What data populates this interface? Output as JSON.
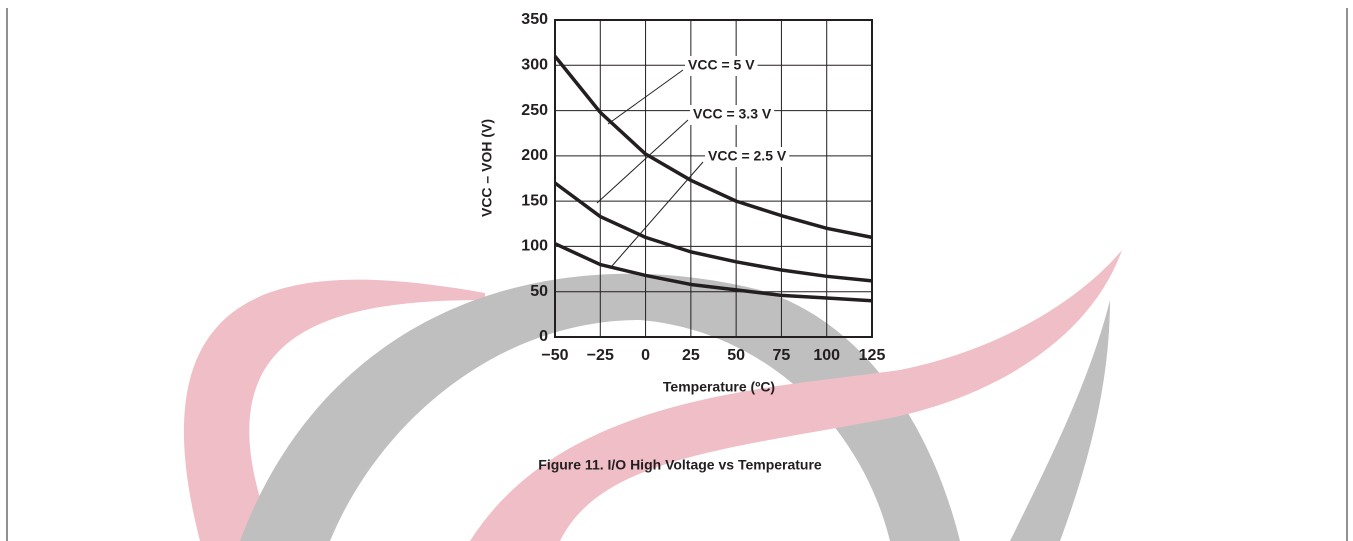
{
  "chart_data": {
    "type": "line",
    "caption": "Figure 11. I/O High Voltage vs Temperature",
    "xlabel": "Temperature (ºC)",
    "ylabel": "VCC – VOH (V)",
    "x": [
      -50,
      -25,
      0,
      25,
      50,
      75,
      100,
      125
    ],
    "series": [
      {
        "name": "VCC = 5 V",
        "color": "#231f20",
        "values": [
          310,
          248,
          202,
          173,
          150,
          134,
          120,
          110
        ]
      },
      {
        "name": "VCC = 3.3 V",
        "color": "#231f20",
        "values": [
          170,
          133,
          110,
          94,
          83,
          74,
          67,
          62
        ]
      },
      {
        "name": "VCC = 2.5 V",
        "color": "#231f20",
        "values": [
          103,
          80,
          68,
          58,
          52,
          46,
          43,
          40
        ]
      }
    ],
    "xlim": [
      -50,
      125
    ],
    "xticks": [
      {
        "value": -50,
        "label": "−50"
      },
      {
        "value": -25,
        "label": "−25"
      },
      0,
      25,
      50,
      75,
      100,
      125
    ],
    "ylim": [
      0,
      350
    ],
    "yticks": [
      0,
      50,
      100,
      150,
      200,
      250,
      300,
      350
    ],
    "grid": true
  }
}
